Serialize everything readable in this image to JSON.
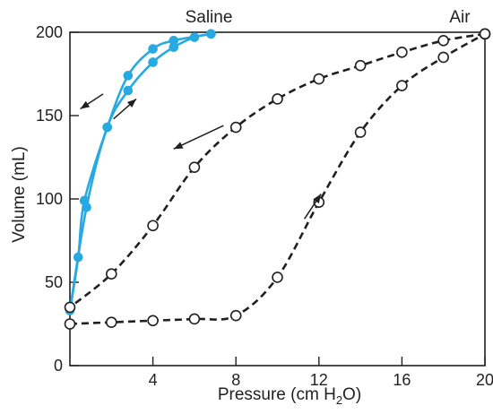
{
  "chart_data": {
    "type": "line",
    "xlabel": "Pressure (cm H",
    "xlabel_sub": "2",
    "xlabel_end": "O)",
    "ylabel": "Volume (mL)",
    "xlim": [
      0,
      20
    ],
    "ylim": [
      0,
      200
    ],
    "xticks": [
      4,
      8,
      12,
      16,
      20
    ],
    "yticks": [
      0,
      50,
      100,
      150,
      200
    ],
    "grid": false,
    "series": [
      {
        "name": "Saline",
        "direction": "inflation",
        "style": "solid",
        "marker": "filled",
        "color": "#27a9e1",
        "x": [
          0,
          0.8,
          1.8,
          2.8,
          4.0,
          5.0,
          6.0,
          6.8
        ],
        "y": [
          33,
          95,
          143,
          165,
          182,
          191,
          197,
          199
        ]
      },
      {
        "name": "Saline",
        "direction": "deflation",
        "style": "solid",
        "marker": "filled",
        "color": "#27a9e1",
        "x": [
          6.8,
          5.0,
          4.0,
          2.8,
          1.8,
          0.7,
          0.4,
          0
        ],
        "y": [
          199,
          195,
          190,
          174,
          143,
          99,
          65,
          33
        ]
      },
      {
        "name": "Air",
        "direction": "inflation",
        "style": "dashed",
        "marker": "open",
        "color": "#231f20",
        "x": [
          0,
          2,
          4,
          6,
          8,
          10,
          12,
          14,
          16,
          18,
          20
        ],
        "y": [
          25,
          26,
          27,
          28,
          30,
          53,
          98,
          140,
          168,
          185,
          199
        ]
      },
      {
        "name": "Air",
        "direction": "deflation",
        "style": "dashed",
        "marker": "open",
        "color": "#231f20",
        "x": [
          20,
          18,
          16,
          14,
          12,
          10,
          8,
          6,
          4,
          2,
          0
        ],
        "y": [
          199,
          195,
          188,
          180,
          172,
          160,
          143,
          119,
          84,
          55,
          35
        ]
      }
    ],
    "annotations": [
      {
        "text": "Saline"
      },
      {
        "text": "Air"
      }
    ],
    "arrows": [
      {
        "series": "saline",
        "direction": "down-left"
      },
      {
        "series": "saline",
        "direction": "up-right"
      },
      {
        "series": "air",
        "direction": "down-left"
      },
      {
        "series": "air",
        "direction": "up-right"
      }
    ]
  }
}
